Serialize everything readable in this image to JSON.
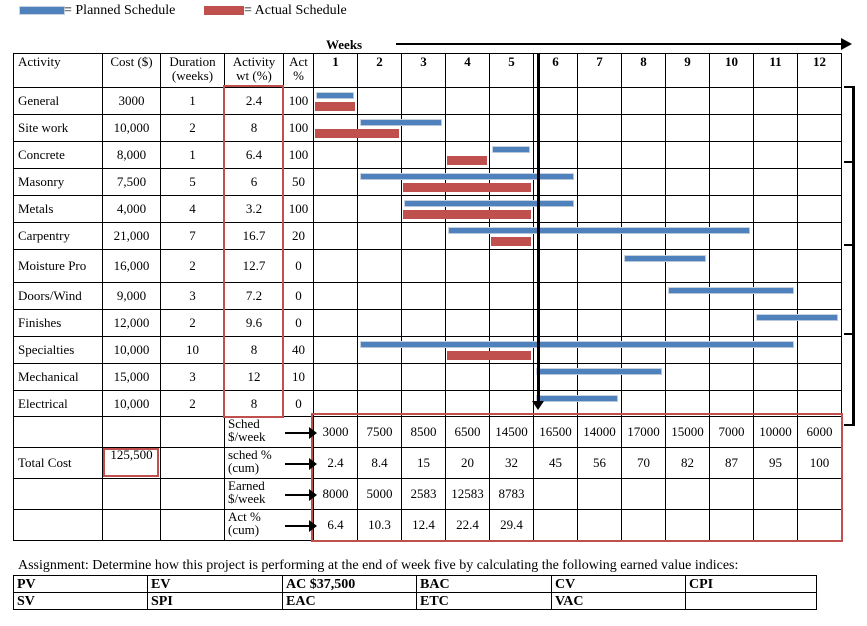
{
  "legend": {
    "planned_label": "= Planned Schedule",
    "actual_label": "= Actual Schedule"
  },
  "colors": {
    "planned": "#4f81bd",
    "actual": "#c0504d",
    "box": "#c0504d"
  },
  "header": {
    "weeks_title": "Weeks",
    "activity": "Activity",
    "cost": "Cost ($)",
    "duration": "Duration (weeks)",
    "activity_wt": "Activity wt (%)",
    "act_pct": "Act %",
    "weeks": [
      "1",
      "2",
      "3",
      "4",
      "5",
      "6",
      "7",
      "8",
      "9",
      "10",
      "11",
      "12"
    ]
  },
  "activities": [
    {
      "name": "General",
      "cost": "3000",
      "duration": "1",
      "wt": "2.4",
      "act": "100",
      "planned": [
        1,
        1
      ],
      "actual": [
        1,
        1
      ]
    },
    {
      "name": "Site work",
      "cost": "10,000",
      "duration": "2",
      "wt": "8",
      "act": "100",
      "planned": [
        2,
        3
      ],
      "actual": [
        1,
        2
      ]
    },
    {
      "name": "Concrete",
      "cost": "8,000",
      "duration": "1",
      "wt": "6.4",
      "act": "100",
      "planned": [
        5,
        5
      ],
      "actual": [
        4,
        4
      ]
    },
    {
      "name": "Masonry",
      "cost": "7,500",
      "duration": "5",
      "wt": "6",
      "act": "50",
      "planned": [
        2,
        6
      ],
      "actual": [
        3,
        5
      ]
    },
    {
      "name": "Metals",
      "cost": "4,000",
      "duration": "4",
      "wt": "3.2",
      "act": "100",
      "planned": [
        3,
        6
      ],
      "actual": [
        3,
        5
      ]
    },
    {
      "name": "Carpentry",
      "cost": "21,000",
      "duration": "7",
      "wt": "16.7",
      "act": "20",
      "planned": [
        4,
        10
      ],
      "actual": [
        5,
        5
      ]
    },
    {
      "name": "Moisture Pro",
      "cost": "16,000",
      "duration": "2",
      "wt": "12.7",
      "act": "0",
      "planned": [
        8,
        9
      ],
      "actual": null
    },
    {
      "name": "Doors/Wind",
      "cost": "9,000",
      "duration": "3",
      "wt": "7.2",
      "act": "0",
      "planned": [
        9,
        11
      ],
      "actual": null
    },
    {
      "name": "Finishes",
      "cost": "12,000",
      "duration": "2",
      "wt": "9.6",
      "act": "0",
      "planned": [
        11,
        12
      ],
      "actual": null
    },
    {
      "name": "Specialties",
      "cost": "10,000",
      "duration": "10",
      "wt": "8",
      "act": "40",
      "planned": [
        2,
        11
      ],
      "actual": [
        4,
        5
      ]
    },
    {
      "name": "Mechanical",
      "cost": "15,000",
      "duration": "3",
      "wt": "12",
      "act": "10",
      "planned": [
        6,
        8
      ],
      "actual": null
    },
    {
      "name": "Electrical",
      "cost": "10,000",
      "duration": "2",
      "wt": "8",
      "act": "0",
      "planned": [
        6,
        7
      ],
      "actual": null
    }
  ],
  "summary": {
    "total_cost_label": "Total Cost",
    "total_cost": "125,500",
    "rows": [
      {
        "label": "Sched $/week",
        "values": [
          "3000",
          "7500",
          "8500",
          "6500",
          "14500",
          "16500",
          "14000",
          "17000",
          "15000",
          "7000",
          "10000",
          "6000"
        ]
      },
      {
        "label": "sched % (cum)",
        "values": [
          "2.4",
          "8.4",
          "15",
          "20",
          "32",
          "45",
          "56",
          "70",
          "82",
          "87",
          "95",
          "100"
        ]
      },
      {
        "label": "Earned $/week",
        "values": [
          "8000",
          "5000",
          "2583",
          "12583",
          "8783",
          "",
          "",
          "",
          "",
          "",
          "",
          ""
        ]
      },
      {
        "label": "Act % (cum)",
        "values": [
          "6.4",
          "10.3",
          "12.4",
          "22.4",
          "29.4",
          "",
          "",
          "",
          "",
          "",
          "",
          ""
        ]
      }
    ]
  },
  "assignment": "Assignment: Determine how this project is performing at the end of week five by calculating the following earned value indices:",
  "indices": [
    [
      "PV",
      "EV",
      "AC   $37,500",
      "BAC",
      "CV",
      "CPI"
    ],
    [
      "SV",
      "SPI",
      "EAC",
      "ETC",
      "VAC",
      ""
    ]
  ]
}
